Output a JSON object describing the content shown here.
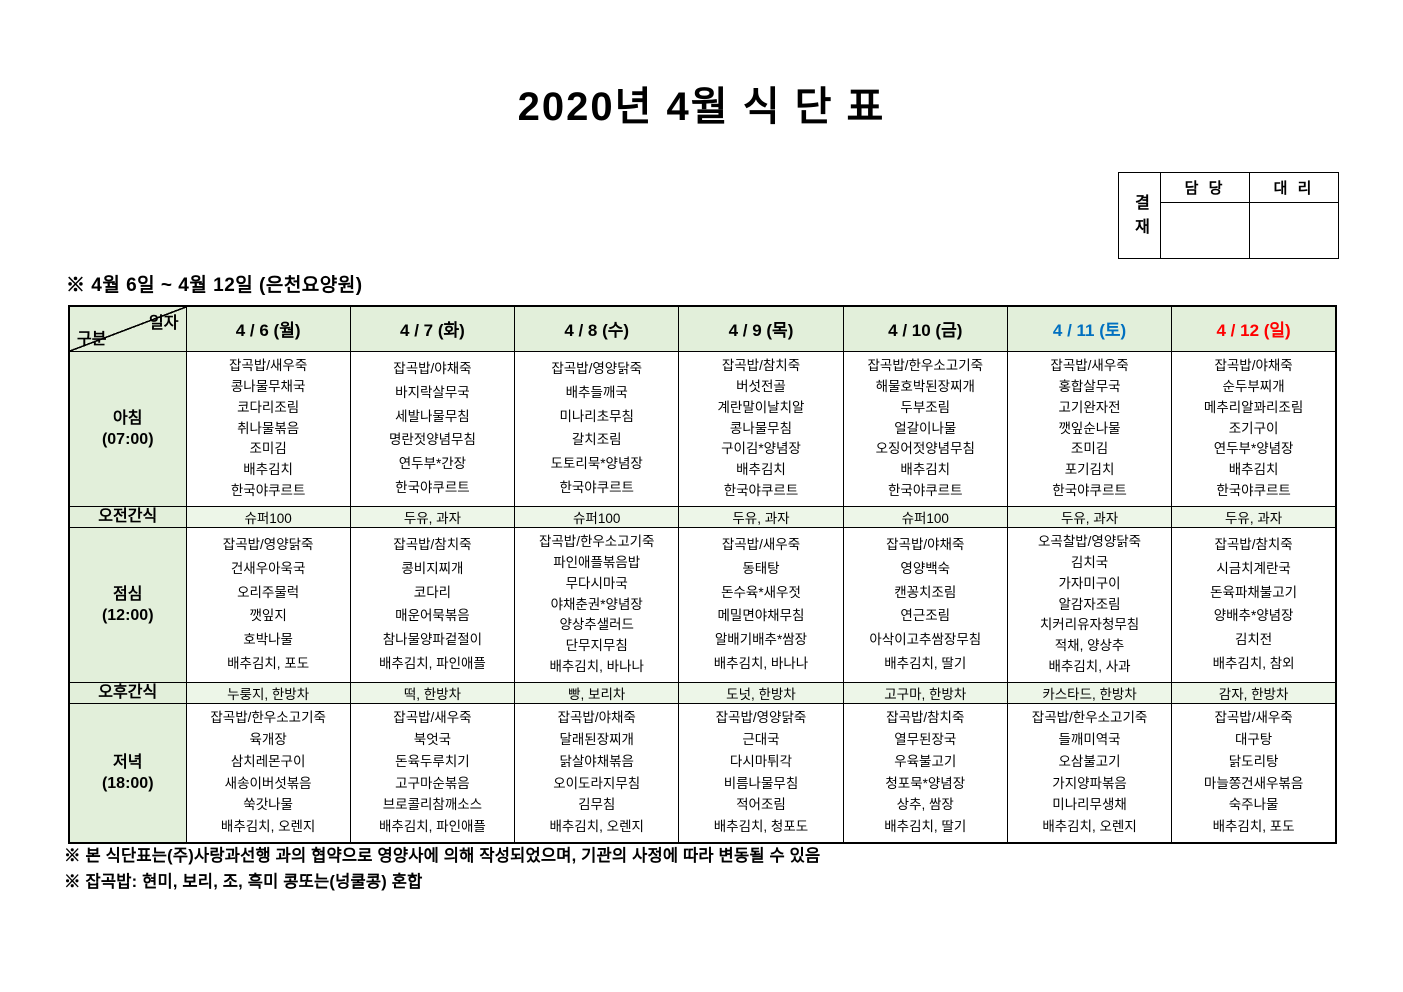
{
  "title": "2020년 4월 식 단 표",
  "subtitle": "※ 4월 6일 ~ 4월 12일 (은천요양원)",
  "approval": {
    "stamp_label": "결재",
    "columns": [
      "담 당",
      "대 리"
    ]
  },
  "colors": {
    "header_green": "#e2efda",
    "snack_green": "#edf6e8",
    "saturday_blue": "#0070c0",
    "sunday_red": "#ff0000",
    "text_black": "#000000"
  },
  "table": {
    "corner": {
      "top": "일자",
      "bottom": "구분"
    },
    "days": [
      {
        "label": "4 / 6 (월)",
        "color": "#000000"
      },
      {
        "label": "4 / 7 (화)",
        "color": "#000000"
      },
      {
        "label": "4 / 8 (수)",
        "color": "#000000"
      },
      {
        "label": "4 / 9 (목)",
        "color": "#000000"
      },
      {
        "label": "4 / 10 (금)",
        "color": "#000000"
      },
      {
        "label": "4 / 11 (토)",
        "color": "#0070c0"
      },
      {
        "label": "4 / 12 (일)",
        "color": "#ff0000"
      }
    ],
    "rows": [
      {
        "key": "breakfast",
        "type": "meal",
        "label": [
          "아침",
          "(07:00)"
        ],
        "cells": [
          [
            "잡곡밥/새우죽",
            "콩나물무채국",
            "코다리조림",
            "취나물볶음",
            "조미김",
            "배추김치",
            "한국야쿠르트"
          ],
          [
            "잡곡밥/야채죽",
            "바지락살무국",
            "세발나물무침",
            "명란젓양념무침",
            "연두부*간장",
            "한국야쿠르트"
          ],
          [
            "잡곡밥/영양닭죽",
            "배추들깨국",
            "미나리초무침",
            "갈치조림",
            "도토리묵*양념장",
            "한국야쿠르트"
          ],
          [
            "잡곡밥/참치죽",
            "버섯전골",
            "계란말이날치알",
            "콩나물무침",
            "구이김*양념장",
            "배추김치",
            "한국야쿠르트"
          ],
          [
            "잡곡밥/한우소고기죽",
            "해물호박된장찌개",
            "두부조림",
            "얼갈이나물",
            "오징어젓양념무침",
            "배추김치",
            "한국야쿠르트"
          ],
          [
            "잡곡밥/새우죽",
            "홍합살무국",
            "고기완자전",
            "깻잎순나물",
            "조미김",
            "포기김치",
            "한국야쿠르트"
          ],
          [
            "잡곡밥/야채죽",
            "순두부찌개",
            "메추리알꽈리조림",
            "조기구이",
            "연두부*양념장",
            "배추김치",
            "한국야쿠르트"
          ]
        ]
      },
      {
        "key": "morning-snack",
        "type": "snack",
        "label": [
          "오전간식"
        ],
        "cells": [
          "슈퍼100",
          "두유, 과자",
          "슈퍼100",
          "두유, 과자",
          "슈퍼100",
          "두유, 과자",
          "두유, 과자"
        ]
      },
      {
        "key": "lunch",
        "type": "meal",
        "label": [
          "점심",
          "(12:00)"
        ],
        "cells": [
          [
            "잡곡밥/영양닭죽",
            "건새우아욱국",
            "오리주물럭",
            "깻잎지",
            "호박나물",
            "배추김치, 포도"
          ],
          [
            "잡곡밥/참치죽",
            "콩비지찌개",
            "코다리",
            "매운어묵볶음",
            "참나물양파겉절이",
            "배추김치, 파인애플"
          ],
          [
            "잡곡밥/한우소고기죽",
            "파인애플볶음밥",
            "무다시마국",
            "야채춘권*양념장",
            "양상추샐러드",
            "단무지무침",
            "배추김치, 바나나"
          ],
          [
            "잡곡밥/새우죽",
            "동태탕",
            "돈수육*새우젓",
            "메밀면야채무침",
            "알배기배추*쌈장",
            "배추김치, 바나나"
          ],
          [
            "잡곡밥/야채죽",
            "영양백숙",
            "캔꽁치조림",
            "연근조림",
            "아삭이고추쌈장무침",
            "배추김치, 딸기"
          ],
          [
            "오곡찰밥/영양닭죽",
            "김치국",
            "가자미구이",
            "알감자조림",
            "치커리유자청무침",
            "적채, 양상추",
            "배추김치, 사과"
          ],
          [
            "잡곡밥/참치죽",
            "시금치계란국",
            "돈육파채불고기",
            "양배추*양념장",
            "김치전",
            "배추김치, 참외"
          ]
        ]
      },
      {
        "key": "afternoon-snack",
        "type": "snack",
        "label": [
          "오후간식"
        ],
        "cells": [
          "누룽지, 한방차",
          "떡, 한방차",
          "빵, 보리차",
          "도넛, 한방차",
          "고구마, 한방차",
          "카스타드, 한방차",
          "감자, 한방차"
        ]
      },
      {
        "key": "dinner",
        "type": "meal",
        "label": [
          "저녁",
          "(18:00)"
        ],
        "cells": [
          [
            "잡곡밥/한우소고기죽",
            "육개장",
            "삼치레몬구이",
            "새송이버섯볶음",
            "쑥갓나물",
            "배추김치, 오렌지"
          ],
          [
            "잡곡밥/새우죽",
            "북엇국",
            "돈육두루치기",
            "고구마순볶음",
            "브로콜리참깨소스",
            "배추김치, 파인애플"
          ],
          [
            "잡곡밥/야채죽",
            "달래된장찌개",
            "닭살야채볶음",
            "오이도라지무침",
            "김무침",
            "배추김치, 오렌지"
          ],
          [
            "잡곡밥/영양닭죽",
            "근대국",
            "다시마튀각",
            "비름나물무침",
            "적어조림",
            "배추김치, 청포도"
          ],
          [
            "잡곡밥/참치죽",
            "열무된장국",
            "우육불고기",
            "청포묵*양념장",
            "상추, 쌈장",
            "배추김치, 딸기"
          ],
          [
            "잡곡밥/한우소고기죽",
            "들깨미역국",
            "오삼불고기",
            "가지양파볶음",
            "미나리무생채",
            "배추김치, 오렌지"
          ],
          [
            "잡곡밥/새우죽",
            "대구탕",
            "닭도리탕",
            "마늘쫑건새우볶음",
            "숙주나물",
            "배추김치, 포도"
          ]
        ]
      }
    ]
  },
  "notes": [
    "※ 본 식단표는(주)사랑과선행 과의 협약으로 영양사에 의해 작성되었으며, 기관의 사정에 따라 변동될 수 있음",
    "※ 잡곡밥: 현미, 보리, 조, 흑미 콩또는(넝쿨콩) 혼합"
  ]
}
